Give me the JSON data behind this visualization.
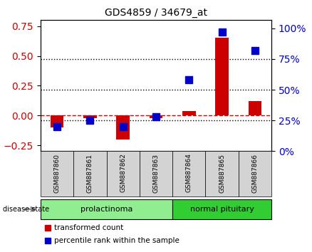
{
  "title": "GDS4859 / 34679_at",
  "samples": [
    "GSM887860",
    "GSM887861",
    "GSM887862",
    "GSM887863",
    "GSM887864",
    "GSM887865",
    "GSM887866"
  ],
  "transformed_count": [
    -0.1,
    -0.02,
    -0.2,
    -0.02,
    0.04,
    0.65,
    0.12
  ],
  "percentile_rank": [
    20,
    25,
    20,
    28,
    58,
    97,
    82
  ],
  "left_ylim": [
    -0.3,
    0.8
  ],
  "right_ylim": [
    0,
    106.67
  ],
  "left_yticks": [
    -0.25,
    0.0,
    0.25,
    0.5,
    0.75
  ],
  "right_yticks": [
    0,
    25,
    50,
    75,
    100
  ],
  "groups": [
    {
      "label": "prolactinoma",
      "indices": [
        0,
        1,
        2,
        3
      ],
      "color": "#90EE90"
    },
    {
      "label": "normal pituitary",
      "indices": [
        4,
        5,
        6
      ],
      "color": "#32CD32"
    }
  ],
  "bar_color": "#CC0000",
  "marker_color": "#0000CC",
  "background_color": "#f0f0f0",
  "group_row_color_light": "#b3f0b3",
  "group_row_color_dark": "#55cc55",
  "dashed_line_color": "#CC0000",
  "dotted_line_color": "#000000",
  "bar_width": 0.4,
  "marker_size": 7
}
